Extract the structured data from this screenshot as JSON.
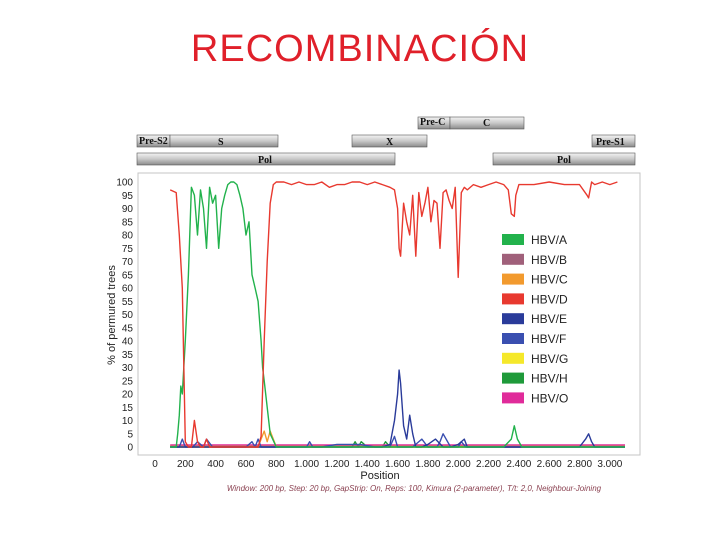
{
  "slide": {
    "title": "RECOMBINACIÓN"
  },
  "genome_map": {
    "segments": [
      {
        "label": "Pre-C",
        "row": 0
      },
      {
        "label": "C",
        "row": 0
      },
      {
        "label": "Pre-S2",
        "row": 1
      },
      {
        "label": "S",
        "row": 1
      },
      {
        "label": "X",
        "row": 1
      },
      {
        "label": "Pre-S1",
        "row": 1
      },
      {
        "label": "Pol",
        "row": 2
      },
      {
        "label": "Pol",
        "row": 2
      }
    ]
  },
  "chart_data": {
    "type": "line",
    "title": "",
    "xlabel": "Position",
    "ylabel": "% of permured trees",
    "xlim": [
      0,
      3100
    ],
    "ylim": [
      0,
      100
    ],
    "x_ticks": [
      "0",
      "200",
      "400",
      "600",
      "800",
      "1.000",
      "1.200",
      "1.400",
      "1.600",
      "1.800",
      "2.000",
      "2.200",
      "2.400",
      "2.600",
      "2.800",
      "3.000"
    ],
    "x_tick_values": [
      0,
      200,
      400,
      600,
      800,
      1000,
      1200,
      1400,
      1600,
      1800,
      2000,
      2200,
      2400,
      2600,
      2800,
      3000
    ],
    "y_ticks": [
      0,
      5,
      10,
      15,
      20,
      25,
      30,
      35,
      40,
      45,
      50,
      55,
      60,
      65,
      70,
      75,
      80,
      85,
      90,
      95,
      100
    ],
    "legend_position": "right",
    "caption": "Window: 200 bp, Step: 20 bp, GapStrip: On, Reps: 100, Kimura (2-parameter), T/t: 2,0, Neighbour-Joining",
    "series": [
      {
        "name": "HBV/A",
        "color": "#22b24c",
        "x": [
          100,
          140,
          150,
          160,
          170,
          180,
          200,
          220,
          240,
          260,
          280,
          300,
          320,
          340,
          360,
          380,
          400,
          420,
          440,
          460,
          480,
          500,
          520,
          540,
          560,
          580,
          600,
          620,
          640,
          660,
          680,
          700,
          710,
          720,
          740,
          760,
          800,
          900,
          1000,
          1100,
          1200,
          1300,
          1400,
          1500,
          1600,
          1700,
          1800,
          1900,
          2000,
          2100,
          2200,
          2300,
          2350,
          2370,
          2390,
          2420,
          2500,
          2600,
          2700,
          2800,
          2900,
          3000,
          3100
        ],
        "y": [
          0,
          0,
          5,
          12,
          23,
          20,
          40,
          65,
          98,
          95,
          80,
          97,
          90,
          75,
          98,
          92,
          95,
          75,
          90,
          95,
          99,
          100,
          100,
          99,
          95,
          90,
          80,
          85,
          65,
          60,
          55,
          40,
          30,
          25,
          15,
          5,
          0,
          0,
          0,
          0,
          0,
          0,
          0,
          0,
          0,
          0,
          0,
          0,
          0,
          0,
          0,
          0,
          3,
          8,
          3,
          0,
          0,
          0,
          0,
          0,
          0,
          0,
          0
        ]
      },
      {
        "name": "HBV/B",
        "color": "#a0607a",
        "x": [
          100,
          600,
          900,
          1500,
          2000,
          2500,
          3100
        ],
        "y": [
          0.5,
          0.5,
          0.5,
          0.5,
          0.5,
          0.5,
          0.5
        ]
      },
      {
        "name": "HBV/C",
        "color": "#f29a2e",
        "x": [
          100,
          600,
          680,
          700,
          720,
          740,
          760,
          780,
          800,
          1000,
          2000,
          3100
        ],
        "y": [
          0,
          0,
          0,
          3,
          6,
          2,
          6,
          3,
          0,
          0,
          0,
          0
        ]
      },
      {
        "name": "HBV/D",
        "color": "#e8392f",
        "x": [
          100,
          140,
          160,
          180,
          200,
          220,
          240,
          260,
          280,
          300,
          320,
          340,
          360,
          380,
          400,
          420,
          440,
          460,
          480,
          500,
          520,
          540,
          560,
          580,
          600,
          620,
          640,
          660,
          680,
          700,
          720,
          740,
          760,
          780,
          800,
          850,
          900,
          950,
          1000,
          1050,
          1100,
          1150,
          1200,
          1250,
          1300,
          1350,
          1400,
          1450,
          1500,
          1550,
          1580,
          1600,
          1610,
          1620,
          1640,
          1660,
          1680,
          1700,
          1720,
          1740,
          1760,
          1780,
          1800,
          1820,
          1840,
          1860,
          1880,
          1900,
          1920,
          1940,
          1960,
          1980,
          2000,
          2020,
          2040,
          2060,
          2100,
          2150,
          2200,
          2250,
          2300,
          2330,
          2350,
          2370,
          2380,
          2400,
          2450,
          2500,
          2600,
          2700,
          2800,
          2850,
          2860,
          2880,
          2900,
          2950,
          3000,
          3050
        ],
        "y": [
          97,
          96,
          80,
          60,
          2,
          0,
          0,
          10,
          2,
          0,
          0,
          3,
          0,
          0,
          0,
          0,
          0,
          0,
          0,
          0,
          0,
          0,
          0,
          0,
          0,
          0,
          0,
          0,
          0,
          4,
          40,
          70,
          92,
          99,
          100,
          100,
          99,
          100,
          99,
          99,
          100,
          98,
          99,
          99,
          100,
          100,
          99,
          100,
          99,
          98,
          97,
          90,
          75,
          72,
          92,
          85,
          80,
          95,
          72,
          96,
          87,
          92,
          98,
          85,
          93,
          92,
          75,
          96,
          97,
          93,
          90,
          98,
          64,
          96,
          98,
          97,
          99,
          98,
          99,
          100,
          99,
          97,
          88,
          87,
          95,
          99,
          99,
          99,
          100,
          99,
          99,
          95,
          94,
          100,
          99,
          100,
          99,
          100
        ]
      },
      {
        "name": "HBV/E",
        "color": "#2a3b9a",
        "x": [
          100,
          1500,
          1550,
          1580,
          1600,
          1610,
          1620,
          1640,
          1660,
          1680,
          1700,
          1720,
          1760,
          1800,
          1850,
          1900,
          1950,
          2000,
          2040,
          2060,
          2080,
          2100,
          2800,
          2840,
          2860,
          2880,
          2900,
          3100
        ],
        "y": [
          0,
          0,
          1,
          10,
          20,
          29,
          24,
          8,
          3,
          12,
          5,
          0,
          0,
          1,
          3,
          0,
          0,
          1,
          3,
          0,
          0,
          0,
          0,
          3,
          5,
          2,
          0,
          0
        ]
      },
      {
        "name": "HBV/F",
        "color": "#3a4fb0",
        "x": [
          100,
          160,
          180,
          200,
          250,
          280,
          320,
          340,
          380,
          400,
          600,
          640,
          660,
          680,
          700,
          1000,
          1020,
          1040,
          1100,
          1200,
          1350,
          1450,
          1550,
          1580,
          1600,
          1700,
          1760,
          1800,
          1860,
          1880,
          1900,
          1950,
          2000,
          2020,
          2050,
          2100,
          3100
        ],
        "y": [
          0,
          0,
          3,
          0,
          0,
          2,
          0,
          3,
          0,
          0,
          0,
          2,
          0,
          3,
          0,
          0,
          2,
          0,
          0,
          1,
          1,
          0,
          0,
          4,
          0,
          0,
          3,
          0,
          0,
          2,
          5,
          0,
          0,
          2,
          0,
          0,
          0
        ]
      },
      {
        "name": "HBV/G",
        "color": "#f5e82a",
        "x": [
          100,
          3100
        ],
        "y": [
          0.2,
          0.2
        ]
      },
      {
        "name": "HBV/H",
        "color": "#1f9a3a",
        "x": [
          100,
          1300,
          1320,
          1340,
          1360,
          1400,
          1500,
          1520,
          1550,
          3100
        ],
        "y": [
          0,
          0,
          2,
          0,
          2,
          0,
          0,
          2,
          0,
          0
        ]
      },
      {
        "name": "HBV/O",
        "color": "#e02b9a",
        "x": [
          100,
          3100
        ],
        "y": [
          0.8,
          0.8
        ]
      }
    ]
  }
}
